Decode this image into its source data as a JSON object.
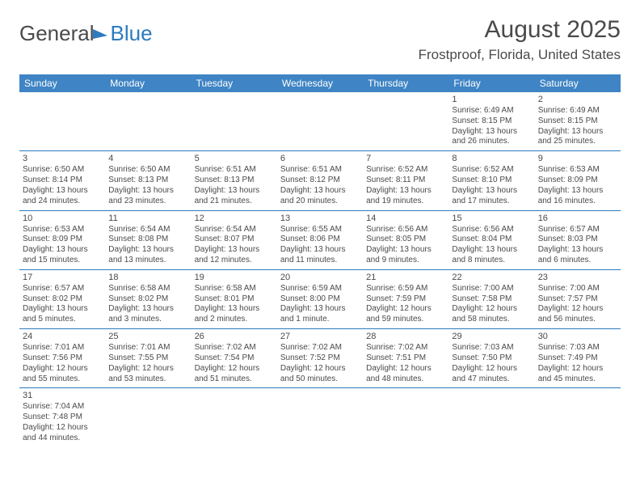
{
  "header": {
    "logo_general": "Genera",
    "logo_blue": "Blue",
    "logo_l": "l",
    "month_title": "August 2025",
    "location": "Frostproof, Florida, United States"
  },
  "styling": {
    "header_bg": "#3f84c4",
    "header_text": "#ffffff",
    "border_color": "#2b7bbf",
    "text_color": "#4a4a4a",
    "background": "#ffffff",
    "logo_blue_color": "#2b7bbf",
    "font_family": "Arial",
    "header_fontsize": 12,
    "cell_fontsize": 10,
    "title_fontsize": 30,
    "location_fontsize": 17
  },
  "calendar": {
    "columns": [
      "Sunday",
      "Monday",
      "Tuesday",
      "Wednesday",
      "Thursday",
      "Friday",
      "Saturday"
    ],
    "weeks": [
      [
        null,
        null,
        null,
        null,
        null,
        {
          "d": "1",
          "sr": "Sunrise: 6:49 AM",
          "ss": "Sunset: 8:15 PM",
          "dl": "Daylight: 13 hours and 26 minutes."
        },
        {
          "d": "2",
          "sr": "Sunrise: 6:49 AM",
          "ss": "Sunset: 8:15 PM",
          "dl": "Daylight: 13 hours and 25 minutes."
        }
      ],
      [
        {
          "d": "3",
          "sr": "Sunrise: 6:50 AM",
          "ss": "Sunset: 8:14 PM",
          "dl": "Daylight: 13 hours and 24 minutes."
        },
        {
          "d": "4",
          "sr": "Sunrise: 6:50 AM",
          "ss": "Sunset: 8:13 PM",
          "dl": "Daylight: 13 hours and 23 minutes."
        },
        {
          "d": "5",
          "sr": "Sunrise: 6:51 AM",
          "ss": "Sunset: 8:13 PM",
          "dl": "Daylight: 13 hours and 21 minutes."
        },
        {
          "d": "6",
          "sr": "Sunrise: 6:51 AM",
          "ss": "Sunset: 8:12 PM",
          "dl": "Daylight: 13 hours and 20 minutes."
        },
        {
          "d": "7",
          "sr": "Sunrise: 6:52 AM",
          "ss": "Sunset: 8:11 PM",
          "dl": "Daylight: 13 hours and 19 minutes."
        },
        {
          "d": "8",
          "sr": "Sunrise: 6:52 AM",
          "ss": "Sunset: 8:10 PM",
          "dl": "Daylight: 13 hours and 17 minutes."
        },
        {
          "d": "9",
          "sr": "Sunrise: 6:53 AM",
          "ss": "Sunset: 8:09 PM",
          "dl": "Daylight: 13 hours and 16 minutes."
        }
      ],
      [
        {
          "d": "10",
          "sr": "Sunrise: 6:53 AM",
          "ss": "Sunset: 8:09 PM",
          "dl": "Daylight: 13 hours and 15 minutes."
        },
        {
          "d": "11",
          "sr": "Sunrise: 6:54 AM",
          "ss": "Sunset: 8:08 PM",
          "dl": "Daylight: 13 hours and 13 minutes."
        },
        {
          "d": "12",
          "sr": "Sunrise: 6:54 AM",
          "ss": "Sunset: 8:07 PM",
          "dl": "Daylight: 13 hours and 12 minutes."
        },
        {
          "d": "13",
          "sr": "Sunrise: 6:55 AM",
          "ss": "Sunset: 8:06 PM",
          "dl": "Daylight: 13 hours and 11 minutes."
        },
        {
          "d": "14",
          "sr": "Sunrise: 6:56 AM",
          "ss": "Sunset: 8:05 PM",
          "dl": "Daylight: 13 hours and 9 minutes."
        },
        {
          "d": "15",
          "sr": "Sunrise: 6:56 AM",
          "ss": "Sunset: 8:04 PM",
          "dl": "Daylight: 13 hours and 8 minutes."
        },
        {
          "d": "16",
          "sr": "Sunrise: 6:57 AM",
          "ss": "Sunset: 8:03 PM",
          "dl": "Daylight: 13 hours and 6 minutes."
        }
      ],
      [
        {
          "d": "17",
          "sr": "Sunrise: 6:57 AM",
          "ss": "Sunset: 8:02 PM",
          "dl": "Daylight: 13 hours and 5 minutes."
        },
        {
          "d": "18",
          "sr": "Sunrise: 6:58 AM",
          "ss": "Sunset: 8:02 PM",
          "dl": "Daylight: 13 hours and 3 minutes."
        },
        {
          "d": "19",
          "sr": "Sunrise: 6:58 AM",
          "ss": "Sunset: 8:01 PM",
          "dl": "Daylight: 13 hours and 2 minutes."
        },
        {
          "d": "20",
          "sr": "Sunrise: 6:59 AM",
          "ss": "Sunset: 8:00 PM",
          "dl": "Daylight: 13 hours and 1 minute."
        },
        {
          "d": "21",
          "sr": "Sunrise: 6:59 AM",
          "ss": "Sunset: 7:59 PM",
          "dl": "Daylight: 12 hours and 59 minutes."
        },
        {
          "d": "22",
          "sr": "Sunrise: 7:00 AM",
          "ss": "Sunset: 7:58 PM",
          "dl": "Daylight: 12 hours and 58 minutes."
        },
        {
          "d": "23",
          "sr": "Sunrise: 7:00 AM",
          "ss": "Sunset: 7:57 PM",
          "dl": "Daylight: 12 hours and 56 minutes."
        }
      ],
      [
        {
          "d": "24",
          "sr": "Sunrise: 7:01 AM",
          "ss": "Sunset: 7:56 PM",
          "dl": "Daylight: 12 hours and 55 minutes."
        },
        {
          "d": "25",
          "sr": "Sunrise: 7:01 AM",
          "ss": "Sunset: 7:55 PM",
          "dl": "Daylight: 12 hours and 53 minutes."
        },
        {
          "d": "26",
          "sr": "Sunrise: 7:02 AM",
          "ss": "Sunset: 7:54 PM",
          "dl": "Daylight: 12 hours and 51 minutes."
        },
        {
          "d": "27",
          "sr": "Sunrise: 7:02 AM",
          "ss": "Sunset: 7:52 PM",
          "dl": "Daylight: 12 hours and 50 minutes."
        },
        {
          "d": "28",
          "sr": "Sunrise: 7:02 AM",
          "ss": "Sunset: 7:51 PM",
          "dl": "Daylight: 12 hours and 48 minutes."
        },
        {
          "d": "29",
          "sr": "Sunrise: 7:03 AM",
          "ss": "Sunset: 7:50 PM",
          "dl": "Daylight: 12 hours and 47 minutes."
        },
        {
          "d": "30",
          "sr": "Sunrise: 7:03 AM",
          "ss": "Sunset: 7:49 PM",
          "dl": "Daylight: 12 hours and 45 minutes."
        }
      ],
      [
        {
          "d": "31",
          "sr": "Sunrise: 7:04 AM",
          "ss": "Sunset: 7:48 PM",
          "dl": "Daylight: 12 hours and 44 minutes."
        },
        null,
        null,
        null,
        null,
        null,
        null
      ]
    ]
  }
}
